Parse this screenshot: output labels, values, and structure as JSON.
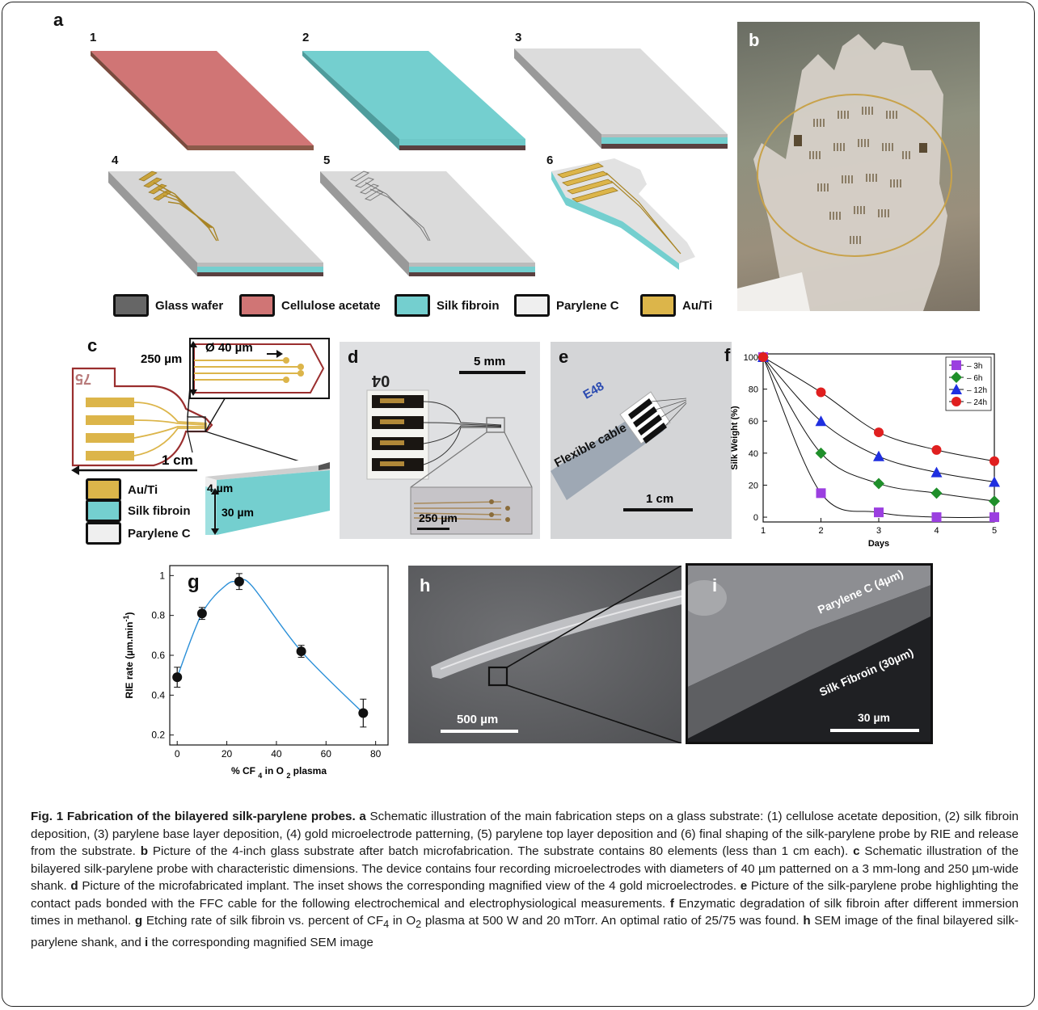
{
  "panels": {
    "a": {
      "label": "a",
      "steps": [
        "1",
        "2",
        "3",
        "4",
        "5",
        "6"
      ],
      "legend": [
        {
          "name": "Glass wafer",
          "color": "#666666"
        },
        {
          "name": "Cellulose acetate",
          "color": "#d07575"
        },
        {
          "name": "Silk fibroin",
          "color": "#74cfcf"
        },
        {
          "name": "Parylene C",
          "color": "#efefef"
        },
        {
          "name": "Au/Ti",
          "color": "#dcb54a"
        }
      ]
    },
    "b": {
      "label": "b"
    },
    "c": {
      "label": "c",
      "device_number": "75",
      "dim_width": "250 µm",
      "dim_diameter": "Ø 40 µm",
      "dim_length": "1 cm",
      "dim_parylene": "4 µm",
      "dim_silk": "30 µm",
      "legend": [
        {
          "name": "Au/Ti",
          "color": "#dcb54a"
        },
        {
          "name": "Silk fibroin",
          "color": "#74cfcf"
        },
        {
          "name": "Parylene C",
          "color": "#efefef"
        }
      ]
    },
    "d": {
      "label": "d",
      "scale_main": "5 mm",
      "scale_inset": "250 µm",
      "device_number": "04"
    },
    "e": {
      "label": "e",
      "cable_text": "Flexible cable",
      "scale": "1 cm",
      "device_number": "E48"
    },
    "f": {
      "label": "f"
    },
    "g": {
      "label": "g"
    },
    "h": {
      "label": "h",
      "scale": "500 µm"
    },
    "i": {
      "label": "i",
      "layer_top": "Parylene C (4µm)",
      "layer_bottom": "Silk Fibroin (30µm)",
      "scale": "30 µm"
    }
  },
  "chart_data": [
    {
      "type": "line",
      "panel": "f",
      "xlabel": "Days",
      "ylabel": "Silk Weight (%)",
      "x": [
        1,
        2,
        3,
        4,
        5
      ],
      "xlim": [
        1,
        5
      ],
      "ylim": [
        -3,
        102
      ],
      "yticks": [
        0,
        20,
        40,
        60,
        80,
        100
      ],
      "xticks": [
        1,
        2,
        3,
        4,
        5
      ],
      "legend_position": "top-right",
      "series": [
        {
          "name": "3h",
          "values": [
            100,
            15,
            3,
            0,
            0
          ],
          "color": "#9b3fe0",
          "marker": "square"
        },
        {
          "name": "6h",
          "values": [
            100,
            40,
            21,
            15,
            10
          ],
          "color": "#1f8f2a",
          "marker": "diamond"
        },
        {
          "name": "12h",
          "values": [
            100,
            60,
            38,
            28,
            22
          ],
          "color": "#1f2fe0",
          "marker": "triangle"
        },
        {
          "name": "24h",
          "values": [
            100,
            78,
            53,
            42,
            35
          ],
          "color": "#e01f1f",
          "marker": "circle"
        }
      ]
    },
    {
      "type": "scatter",
      "panel": "g",
      "xlabel": "% CF 4 in O 2 plasma",
      "ylabel": "RIE rate  (µm.min -1)",
      "x": [
        0,
        10,
        25,
        50,
        75
      ],
      "y": [
        0.49,
        0.81,
        0.97,
        0.62,
        0.31
      ],
      "yerr": [
        0.05,
        0.03,
        0.04,
        0.03,
        0.07
      ],
      "xlim": [
        -3,
        85
      ],
      "ylim": [
        0.15,
        1.05
      ],
      "xticks": [
        0,
        20,
        40,
        60,
        80
      ],
      "yticks": [
        0.2,
        0.4,
        0.6,
        0.8,
        1
      ],
      "fit_color": "#2a8fd8"
    }
  ],
  "caption": {
    "title": "Fig. 1 Fabrication of the bilayered silk-parylene probes.",
    "a": " Schematic illustration of the main fabrication steps on a glass substrate: (1) cellulose acetate deposition, (2) silk fibroin deposition, (3) parylene base layer deposition, (4) gold microelectrode patterning, (5) parylene top layer deposition and (6) final shaping of the silk-parylene probe by RIE and release from the substrate.",
    "b": " Picture of the 4-inch glass substrate after batch microfabrication. The substrate contains 80 elements (less than 1 cm each).",
    "c": " Schematic illustration of the bilayered silk-parylene probe with characteristic dimensions. The device contains four recording microelectrodes with diameters of 40 µm patterned on a 3 mm-long and 250 µm-wide shank.",
    "d": " Picture of the microfabricated implant. The inset shows the corresponding magnified view of the 4 gold microelectrodes.",
    "e": " Picture of the silk-parylene probe highlighting the contact pads bonded with the FFC cable for the following electrochemical and electrophysiological measurements.",
    "f": " Enzymatic degradation of silk fibroin after different immersion times in methanol.",
    "g1": " Etching rate of silk fibroin vs. percent of CF",
    "g_sub1": "4",
    "g2": " in O",
    "g_sub2": "2",
    "g3": " plasma at 500 W and 20 mTorr. An optimal ratio of 25/75 was found.",
    "h": " SEM image of the final bilayered silk-parylene shank, and",
    "i": " the corresponding magnified SEM image"
  }
}
